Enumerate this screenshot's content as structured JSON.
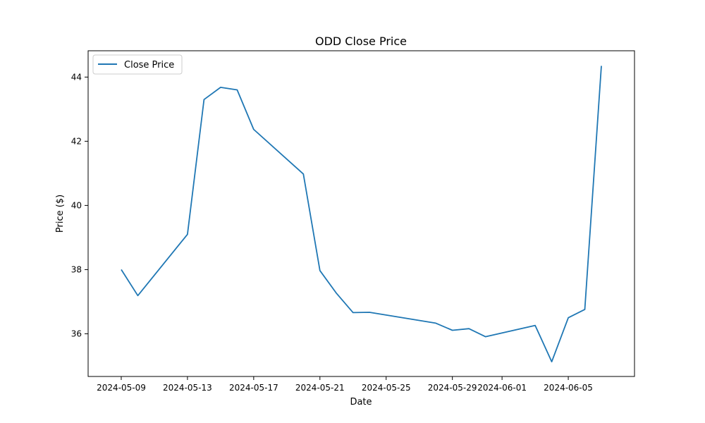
{
  "chart_data": {
    "type": "line",
    "title": "ODD Close Price",
    "xlabel": "Date",
    "ylabel": "Price ($)",
    "legend": {
      "placement": "top-left",
      "entries": [
        "Close Price"
      ]
    },
    "grid": false,
    "xlim": [
      "2024-05-07",
      "2024-06-09"
    ],
    "ylim": [
      34.67,
      44.82
    ],
    "x_ticks": [
      "2024-05-09",
      "2024-05-13",
      "2024-05-17",
      "2024-05-21",
      "2024-05-25",
      "2024-05-29",
      "2024-06-01",
      "2024-06-05"
    ],
    "y_ticks": [
      36,
      38,
      40,
      42,
      44
    ],
    "series": [
      {
        "name": "Close Price",
        "color": "#1f77b4",
        "x": [
          "2024-05-09",
          "2024-05-10",
          "2024-05-13",
          "2024-05-14",
          "2024-05-15",
          "2024-05-16",
          "2024-05-17",
          "2024-05-20",
          "2024-05-21",
          "2024-05-22",
          "2024-05-23",
          "2024-05-24",
          "2024-05-28",
          "2024-05-29",
          "2024-05-30",
          "2024-05-31",
          "2024-06-03",
          "2024-06-04",
          "2024-06-05",
          "2024-06-06",
          "2024-06-07"
        ],
        "values": [
          38.0,
          37.19,
          39.1,
          43.3,
          43.68,
          43.6,
          42.37,
          40.98,
          37.97,
          37.26,
          36.66,
          36.67,
          36.33,
          36.11,
          36.16,
          35.91,
          36.26,
          35.13,
          36.5,
          36.76,
          44.35
        ]
      }
    ]
  }
}
